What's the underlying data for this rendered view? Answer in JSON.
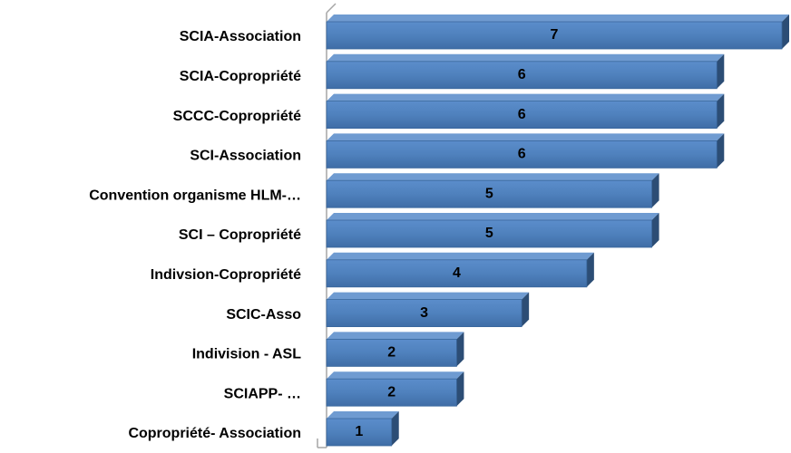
{
  "chart_data": {
    "type": "bar",
    "orientation": "horizontal",
    "categories": [
      "SCIA-Association",
      "SCIA-Copropriété",
      "SCCC-Copropriété",
      "SCI-Association",
      "Convention organisme HLM-…",
      "SCI – Copropriété",
      "Indivsion-Copropriété",
      "SCIC-Asso",
      "Indivision - ASL",
      "SCIAPP- …",
      "Copropriété- Association"
    ],
    "values": [
      7,
      6,
      6,
      6,
      5,
      5,
      4,
      3,
      2,
      2,
      1
    ],
    "color": "#4f81bd"
  }
}
